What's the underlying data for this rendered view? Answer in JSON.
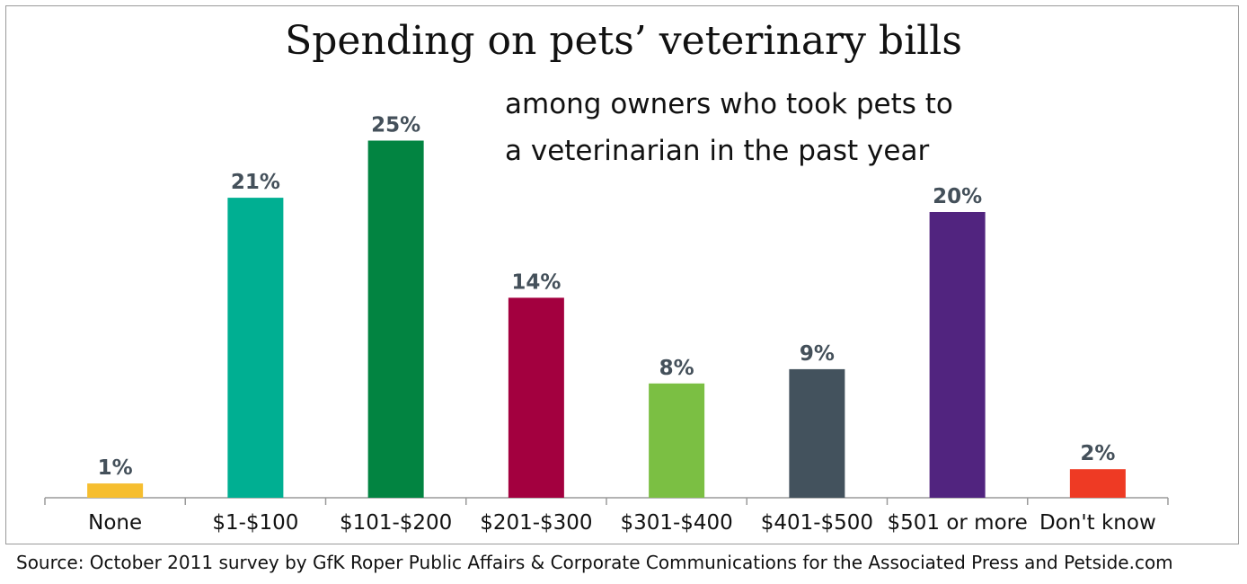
{
  "source": "Source: October 2011 survey by GfK Roper Public Affairs & Corporate Communications for the Associated Press and Petside.com",
  "chart_data": {
    "type": "bar",
    "title": "Spending on pets’ veterinary bills",
    "subtitle_lines": [
      "among owners who took pets to",
      "a veterinarian in the past year"
    ],
    "categories": [
      "None",
      "$1-$100",
      "$101-$200",
      "$201-$300",
      "$301-$400",
      "$401-$500",
      "$501 or more",
      "Don't know"
    ],
    "values": [
      1,
      21,
      25,
      14,
      8,
      9,
      20,
      2
    ],
    "value_labels": [
      "1%",
      "21%",
      "25%",
      "14%",
      "8%",
      "9%",
      "20%",
      "2%"
    ],
    "colors": [
      "#f6be2f",
      "#00af92",
      "#028441",
      "#a3003f",
      "#7bbf43",
      "#43525d",
      "#51247f",
      "#ee3a24"
    ],
    "ylim": [
      0,
      25
    ],
    "grid": false
  }
}
